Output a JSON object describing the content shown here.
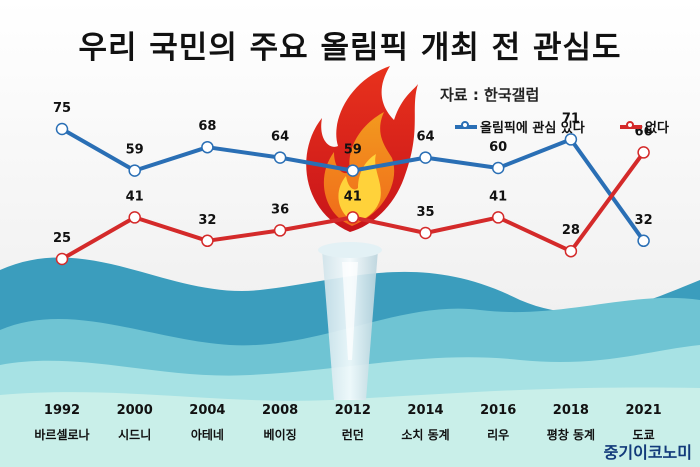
{
  "title": "우리 국민의 주요 올림픽 개최 전 관심도",
  "source": "자료 : 한국갤럽",
  "brand": "중기이코노미",
  "colors": {
    "interest": "#2a6fb5",
    "no_interest": "#d42a2a",
    "wave_dark": "#3a9fbf",
    "wave_light": "#8fd6de"
  },
  "chart_data": {
    "type": "line",
    "categories": [
      "1992",
      "2000",
      "2004",
      "2008",
      "2012",
      "2014",
      "2016",
      "2018",
      "2021"
    ],
    "category_sublabels": [
      "바르셀로나",
      "시드니",
      "아테네",
      "베이징",
      "런던",
      "소치 동계",
      "리우",
      "평창 동계",
      "도쿄"
    ],
    "series": [
      {
        "name": "올림픽에 관심 있다",
        "values": [
          75,
          59,
          68,
          64,
          59,
          64,
          60,
          71,
          32
        ]
      },
      {
        "name": "없다",
        "values": [
          25,
          41,
          32,
          36,
          41,
          35,
          41,
          28,
          66
        ]
      }
    ],
    "legend_position": "top-right",
    "grid": false
  }
}
